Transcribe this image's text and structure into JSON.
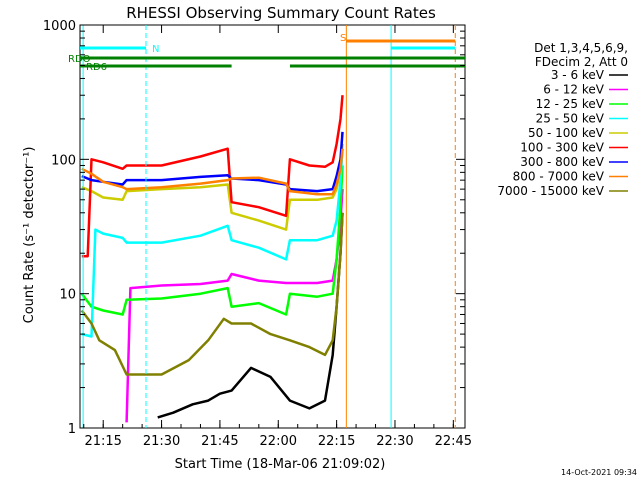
{
  "chart_data": {
    "type": "line",
    "title": "RHESSI Observing Summary Count Rates",
    "xlabel": "Start Time (18-Mar-06 21:09:02)",
    "ylabel": "Count Rate (s⁻¹ detector⁻¹)",
    "y_scale": "log",
    "ylim": [
      1,
      1000
    ],
    "xlim": [
      "21:09:02",
      "22:48:00"
    ],
    "x_tick_labels": [
      "21:15",
      "21:30",
      "21:45",
      "22:00",
      "22:15",
      "22:30",
      "22:45"
    ],
    "y_tick_labels": [
      "1",
      "10",
      "100",
      "1000"
    ],
    "grid": false,
    "legend_position": "right",
    "legend_header": [
      "Det 1,3,4,5,6,9,",
      "FDecim 2, Att 0"
    ],
    "timestamp": "14-Oct-2021 09:34",
    "flags": [
      {
        "label": "RDO",
        "color": "#008000",
        "segments": [
          [
            "21:09:02",
            "22:48:00"
          ]
        ]
      },
      {
        "label": "RD6",
        "color": "#008000",
        "segments": [
          [
            "21:09:02",
            "21:48:00"
          ],
          [
            "22:03:00",
            "22:48:00"
          ]
        ]
      },
      {
        "label": "N",
        "color": "#00ffff",
        "segments": [
          [
            "21:09:02",
            "21:26:00"
          ],
          [
            "22:29:00",
            "22:45:30"
          ]
        ]
      },
      {
        "label": "S",
        "color": "#ff8000",
        "segments": [
          [
            "22:17:30",
            "22:45:30"
          ]
        ]
      }
    ],
    "markers": [
      {
        "time": "21:09:50",
        "color": "#00ffff",
        "style": "solid"
      },
      {
        "time": "21:26:00",
        "color": "#00ffff",
        "style": "dashed"
      },
      {
        "time": "22:17:30",
        "color": "#ff8000",
        "style": "solid"
      },
      {
        "time": "22:29:00",
        "color": "#00ffff",
        "style": "solid"
      },
      {
        "time": "22:45:30",
        "color": "#ff8000",
        "style": "dashed"
      }
    ],
    "series": [
      {
        "name": "3 - 6 keV",
        "color": "#000000",
        "points": [
          [
            "21:29",
            1.2
          ],
          [
            "21:33",
            1.3
          ],
          [
            "21:38",
            1.5
          ],
          [
            "21:42",
            1.6
          ],
          [
            "21:45",
            1.8
          ],
          [
            "21:48",
            1.9
          ],
          [
            "21:53",
            2.8
          ],
          [
            "21:58",
            2.4
          ],
          [
            "22:03",
            1.6
          ],
          [
            "22:08",
            1.4
          ],
          [
            "22:12",
            1.6
          ],
          [
            "22:14",
            3.5
          ],
          [
            "22:15",
            8
          ],
          [
            "22:16",
            20
          ],
          [
            "22:16:30",
            40
          ]
        ]
      },
      {
        "name": "6 - 12 keV",
        "color": "#ff00ff",
        "points": [
          [
            "21:21",
            1.1
          ],
          [
            "21:22",
            11
          ],
          [
            "21:30",
            11.5
          ],
          [
            "21:40",
            11.8
          ],
          [
            "21:47",
            12.5
          ],
          [
            "21:48",
            14
          ],
          [
            "21:55",
            12.5
          ],
          [
            "22:02",
            12.0
          ],
          [
            "22:10",
            12.0
          ],
          [
            "22:14",
            12.5
          ],
          [
            "22:15",
            18
          ],
          [
            "22:16",
            35
          ],
          [
            "22:16:30",
            60
          ]
        ]
      },
      {
        "name": "12 - 25 keV",
        "color": "#00ff00",
        "points": [
          [
            "21:09:30",
            10
          ],
          [
            "21:12",
            8
          ],
          [
            "21:15",
            7.5
          ],
          [
            "21:20",
            7
          ],
          [
            "21:21",
            9
          ],
          [
            "21:30",
            9.2
          ],
          [
            "21:40",
            10.0
          ],
          [
            "21:47",
            11.0
          ],
          [
            "21:48",
            8
          ],
          [
            "21:55",
            8.5
          ],
          [
            "22:02",
            7.0
          ],
          [
            "22:03",
            10
          ],
          [
            "22:10",
            9.5
          ],
          [
            "22:14",
            10.0
          ],
          [
            "22:15",
            18
          ],
          [
            "22:16",
            45
          ],
          [
            "22:16:30",
            90
          ]
        ]
      },
      {
        "name": "25 - 50 keV",
        "color": "#00ffff",
        "points": [
          [
            "21:09:30",
            5.0
          ],
          [
            "21:12",
            4.8
          ],
          [
            "21:13",
            30
          ],
          [
            "21:15",
            28
          ],
          [
            "21:20",
            26
          ],
          [
            "21:21",
            24
          ],
          [
            "21:30",
            24
          ],
          [
            "21:40",
            27
          ],
          [
            "21:47",
            32
          ],
          [
            "21:48",
            25
          ],
          [
            "21:55",
            22
          ],
          [
            "22:02",
            18
          ],
          [
            "22:03",
            25
          ],
          [
            "22:10",
            25
          ],
          [
            "22:14",
            27
          ],
          [
            "22:15",
            35
          ],
          [
            "22:16",
            70
          ],
          [
            "22:16:30",
            120
          ]
        ]
      },
      {
        "name": "50 - 100 keV",
        "color": "#cccc00",
        "points": [
          [
            "21:09:30",
            62
          ],
          [
            "21:12",
            58
          ],
          [
            "21:15",
            52
          ],
          [
            "21:20",
            50
          ],
          [
            "21:21",
            58
          ],
          [
            "21:30",
            60
          ],
          [
            "21:40",
            62
          ],
          [
            "21:47",
            65
          ],
          [
            "21:48",
            40
          ],
          [
            "21:55",
            35
          ],
          [
            "22:02",
            30
          ],
          [
            "22:03",
            50
          ],
          [
            "22:10",
            50
          ],
          [
            "22:14",
            52
          ],
          [
            "22:15",
            60
          ],
          [
            "22:16",
            90
          ],
          [
            "22:16:30",
            130
          ]
        ]
      },
      {
        "name": "100 - 300 keV",
        "color": "#ff0000",
        "points": [
          [
            "21:09:30",
            19
          ],
          [
            "21:11",
            19
          ],
          [
            "21:12",
            100
          ],
          [
            "21:15",
            95
          ],
          [
            "21:20",
            85
          ],
          [
            "21:21",
            90
          ],
          [
            "21:30",
            90
          ],
          [
            "21:40",
            105
          ],
          [
            "21:47",
            120
          ],
          [
            "21:48",
            48
          ],
          [
            "21:55",
            44
          ],
          [
            "22:02",
            38
          ],
          [
            "22:03",
            100
          ],
          [
            "22:08",
            90
          ],
          [
            "22:12",
            88
          ],
          [
            "22:14",
            95
          ],
          [
            "22:15",
            130
          ],
          [
            "22:16",
            200
          ],
          [
            "22:16:30",
            300
          ]
        ]
      },
      {
        "name": "300 - 800 keV",
        "color": "#0000ff",
        "points": [
          [
            "21:09:30",
            75
          ],
          [
            "21:12",
            70
          ],
          [
            "21:15",
            68
          ],
          [
            "21:20",
            65
          ],
          [
            "21:21",
            70
          ],
          [
            "21:30",
            70
          ],
          [
            "21:40",
            74
          ],
          [
            "21:47",
            76
          ],
          [
            "21:48",
            72
          ],
          [
            "21:55",
            70
          ],
          [
            "22:02",
            65
          ],
          [
            "22:03",
            60
          ],
          [
            "22:10",
            58
          ],
          [
            "22:14",
            60
          ],
          [
            "22:15",
            75
          ],
          [
            "22:16",
            100
          ],
          [
            "22:16:30",
            160
          ]
        ]
      },
      {
        "name": "800 - 7000 keV",
        "color": "#ff8000",
        "points": [
          [
            "21:09:30",
            85
          ],
          [
            "21:12",
            78
          ],
          [
            "21:15",
            68
          ],
          [
            "21:20",
            62
          ],
          [
            "21:21",
            60
          ],
          [
            "21:30",
            62
          ],
          [
            "21:40",
            66
          ],
          [
            "21:47",
            70
          ],
          [
            "21:48",
            72
          ],
          [
            "21:55",
            73
          ],
          [
            "22:02",
            66
          ],
          [
            "22:03",
            58
          ],
          [
            "22:10",
            55
          ],
          [
            "22:14",
            55
          ],
          [
            "22:15",
            65
          ],
          [
            "22:16",
            85
          ],
          [
            "22:16:30",
            120
          ]
        ]
      },
      {
        "name": "7000 - 15000 keV",
        "color": "#808000",
        "points": [
          [
            "21:09:30",
            7.5
          ],
          [
            "21:12",
            6
          ],
          [
            "21:14",
            4.5
          ],
          [
            "21:18",
            3.8
          ],
          [
            "21:21",
            2.5
          ],
          [
            "21:30",
            2.5
          ],
          [
            "21:37",
            3.2
          ],
          [
            "21:42",
            4.5
          ],
          [
            "21:46",
            6.5
          ],
          [
            "21:48",
            6
          ],
          [
            "21:53",
            6.0
          ],
          [
            "21:58",
            5.0
          ],
          [
            "22:03",
            4.5
          ],
          [
            "22:08",
            4.0
          ],
          [
            "22:12",
            3.5
          ],
          [
            "22:14",
            4.5
          ],
          [
            "22:15",
            8
          ],
          [
            "22:16",
            20
          ],
          [
            "22:16:30",
            40
          ]
        ]
      }
    ]
  }
}
